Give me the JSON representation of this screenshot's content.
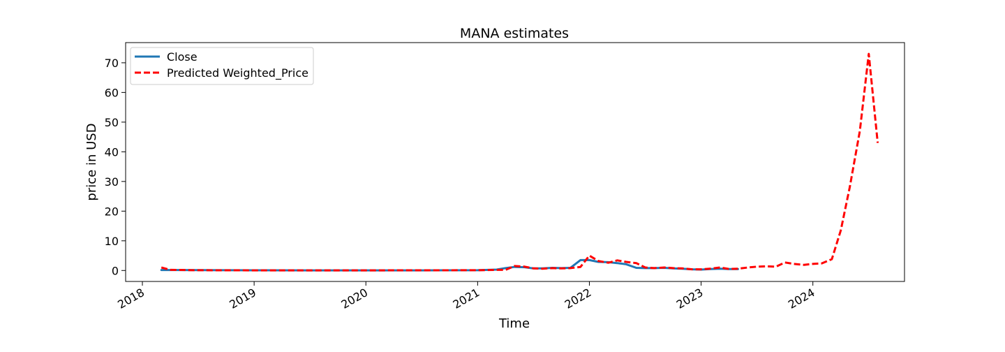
{
  "chart_data": {
    "type": "line",
    "title": "MANA estimates",
    "xlabel": "Time",
    "ylabel": "price in USD",
    "xlim": [
      2017.85,
      2024.82
    ],
    "ylim": [
      -3.7,
      76.8
    ],
    "x_ticks": [
      2018,
      2019,
      2020,
      2021,
      2022,
      2023,
      2024
    ],
    "x_tick_labels": [
      "2018",
      "2019",
      "2020",
      "2021",
      "2022",
      "2023",
      "2024"
    ],
    "y_ticks": [
      0,
      10,
      20,
      30,
      40,
      50,
      60,
      70
    ],
    "y_tick_labels": [
      "0",
      "10",
      "20",
      "30",
      "40",
      "50",
      "60",
      "70"
    ],
    "grid": false,
    "legend_position": "top-left",
    "series": [
      {
        "name": "Close",
        "color": "#1f77b4",
        "style": "solid",
        "points": [
          [
            2018.17,
            0.15
          ],
          [
            2018.25,
            0.15
          ],
          [
            2018.5,
            0.12
          ],
          [
            2018.75,
            0.1
          ],
          [
            2019.0,
            0.06
          ],
          [
            2019.5,
            0.05
          ],
          [
            2020.0,
            0.04
          ],
          [
            2020.5,
            0.05
          ],
          [
            2021.0,
            0.1
          ],
          [
            2021.17,
            0.3
          ],
          [
            2021.25,
            0.8
          ],
          [
            2021.33,
            1.2
          ],
          [
            2021.42,
            1.1
          ],
          [
            2021.5,
            0.7
          ],
          [
            2021.58,
            0.7
          ],
          [
            2021.67,
            0.9
          ],
          [
            2021.75,
            0.8
          ],
          [
            2021.83,
            0.9
          ],
          [
            2021.92,
            3.5
          ],
          [
            2022.0,
            3.5
          ],
          [
            2022.08,
            2.9
          ],
          [
            2022.17,
            2.8
          ],
          [
            2022.25,
            2.5
          ],
          [
            2022.33,
            2.1
          ],
          [
            2022.42,
            0.9
          ],
          [
            2022.5,
            0.8
          ],
          [
            2022.58,
            0.8
          ],
          [
            2022.67,
            0.9
          ],
          [
            2022.75,
            0.7
          ],
          [
            2022.83,
            0.6
          ],
          [
            2022.92,
            0.4
          ],
          [
            2023.0,
            0.3
          ],
          [
            2023.08,
            0.5
          ],
          [
            2023.17,
            0.6
          ],
          [
            2023.25,
            0.5
          ],
          [
            2023.33,
            0.5
          ]
        ]
      },
      {
        "name": "Predicted Weighted_Price",
        "color": "#ff0000",
        "style": "dashed",
        "points": [
          [
            2018.17,
            1.0
          ],
          [
            2018.25,
            0.2
          ],
          [
            2018.5,
            0.1
          ],
          [
            2019.0,
            0.05
          ],
          [
            2020.0,
            0.05
          ],
          [
            2021.0,
            0.1
          ],
          [
            2021.17,
            0.2
          ],
          [
            2021.25,
            0.2
          ],
          [
            2021.33,
            1.5
          ],
          [
            2021.42,
            1.3
          ],
          [
            2021.5,
            0.7
          ],
          [
            2021.58,
            0.6
          ],
          [
            2021.67,
            0.8
          ],
          [
            2021.75,
            0.7
          ],
          [
            2021.83,
            0.8
          ],
          [
            2021.92,
            1.2
          ],
          [
            2022.0,
            5.0
          ],
          [
            2022.08,
            3.2
          ],
          [
            2022.17,
            2.6
          ],
          [
            2022.25,
            3.4
          ],
          [
            2022.33,
            2.9
          ],
          [
            2022.42,
            2.5
          ],
          [
            2022.5,
            1.0
          ],
          [
            2022.58,
            0.8
          ],
          [
            2022.67,
            1.0
          ],
          [
            2022.75,
            0.8
          ],
          [
            2022.83,
            0.7
          ],
          [
            2022.92,
            0.4
          ],
          [
            2023.0,
            0.4
          ],
          [
            2023.08,
            0.6
          ],
          [
            2023.17,
            1.0
          ],
          [
            2023.25,
            0.5
          ],
          [
            2023.33,
            0.6
          ],
          [
            2023.42,
            1.0
          ],
          [
            2023.5,
            1.3
          ],
          [
            2023.58,
            1.4
          ],
          [
            2023.67,
            1.3
          ],
          [
            2023.75,
            2.7
          ],
          [
            2023.83,
            2.2
          ],
          [
            2023.92,
            1.9
          ],
          [
            2024.0,
            2.2
          ],
          [
            2024.08,
            2.4
          ],
          [
            2024.17,
            3.8
          ],
          [
            2024.25,
            13.5
          ],
          [
            2024.33,
            28.0
          ],
          [
            2024.42,
            47.0
          ],
          [
            2024.5,
            73.0
          ],
          [
            2024.58,
            43.0
          ]
        ]
      }
    ]
  }
}
